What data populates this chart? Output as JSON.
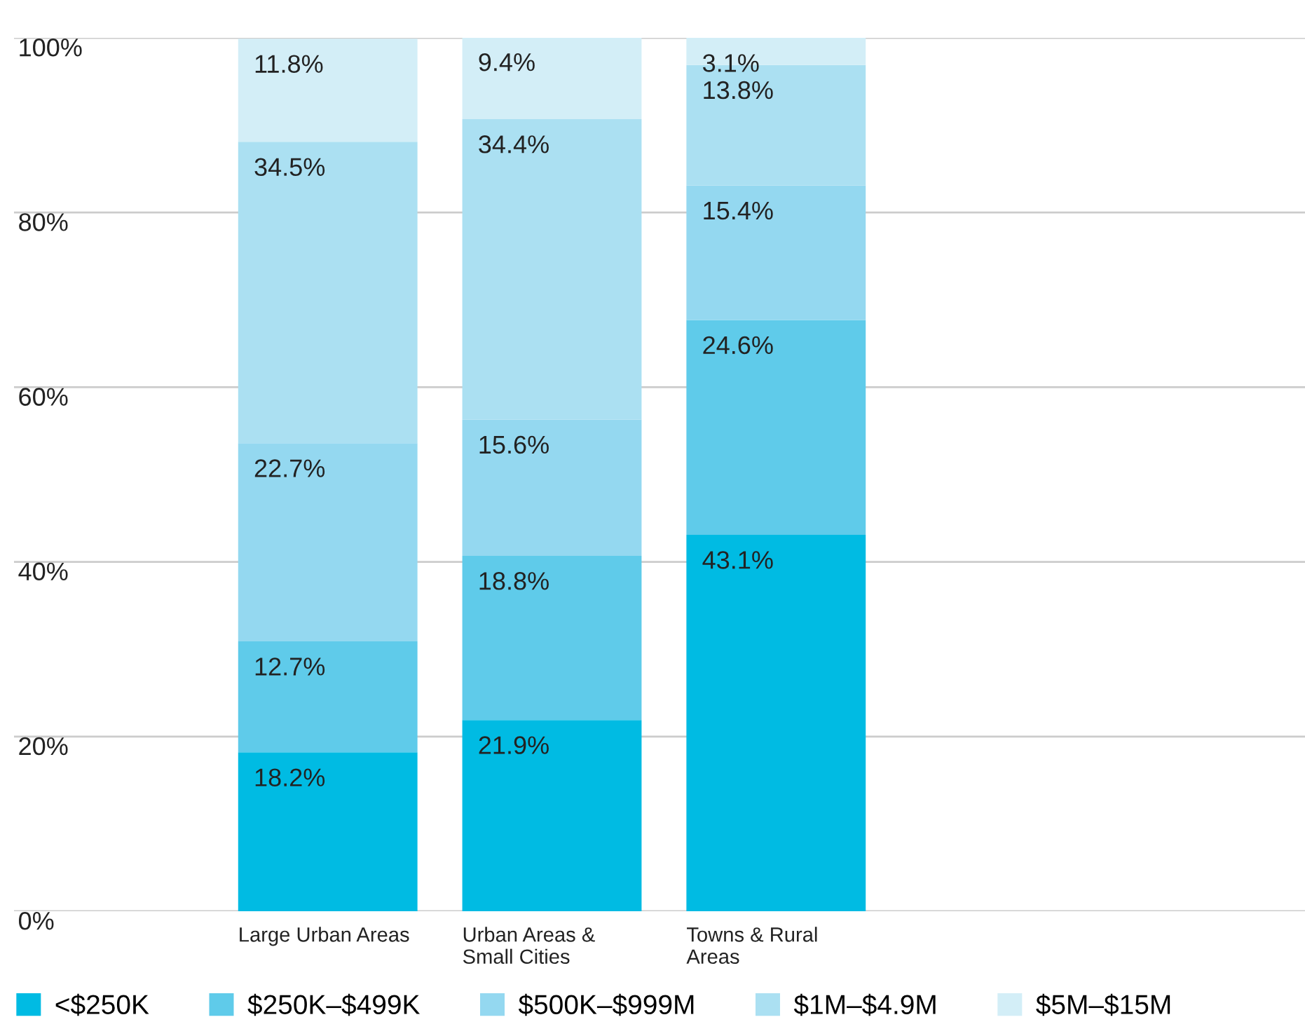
{
  "chart_data": {
    "type": "bar",
    "stacked": true,
    "categories": [
      "Large Urban Areas",
      "Urban Areas &\nSmall Cities",
      "Towns & Rural\nAreas"
    ],
    "series": [
      {
        "name": "<$250K",
        "color": "#00bbe3",
        "values": [
          18.2,
          21.9,
          43.1
        ],
        "value_labels": [
          "18.2%",
          "21.9%",
          "43.1%"
        ]
      },
      {
        "name": "$250K–$499K",
        "color": "#5fcbea",
        "values": [
          12.7,
          18.8,
          24.6
        ],
        "value_labels": [
          "12.7%",
          "18.8%",
          "24.6%"
        ]
      },
      {
        "name": "$500K–$999M",
        "color": "#94d8f0",
        "values": [
          22.7,
          15.6,
          15.4
        ],
        "value_labels": [
          "22.7%",
          "15.6%",
          "15.4%"
        ]
      },
      {
        "name": "$1M–$4.9M",
        "color": "#abe0f2",
        "values": [
          34.5,
          34.4,
          13.8
        ],
        "value_labels": [
          "34.5%",
          "34.4%",
          "13.8%"
        ]
      },
      {
        "name": "$5M–$15M",
        "color": "#d3eef7",
        "values": [
          11.8,
          9.4,
          3.1
        ],
        "value_labels": [
          "11.8%",
          "9.4%",
          "3.1%"
        ]
      }
    ],
    "ylim": [
      0,
      100
    ],
    "yticks": [
      {
        "value": 0,
        "label": "0%"
      },
      {
        "value": 20,
        "label": "20%"
      },
      {
        "value": 40,
        "label": "40%"
      },
      {
        "value": 60,
        "label": "60%"
      },
      {
        "value": 80,
        "label": "80%"
      },
      {
        "value": 100,
        "label": "100%"
      }
    ],
    "grid": "y",
    "legend": "bottom"
  }
}
